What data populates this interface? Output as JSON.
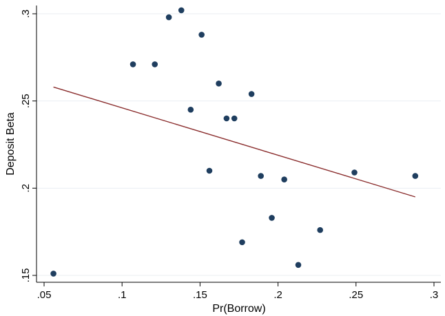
{
  "chart_data": {
    "type": "scatter",
    "title": "",
    "xlabel": "Pr(Borrow)",
    "ylabel": "Deposit Beta",
    "xlim": [
      0.05,
      0.3
    ],
    "ylim": [
      0.15,
      0.3
    ],
    "x_ticks": [
      0.05,
      0.1,
      0.15,
      0.2,
      0.25,
      0.3
    ],
    "x_tick_labels": [
      ".05",
      ".1",
      ".15",
      ".2",
      ".25",
      ".3"
    ],
    "y_ticks": [
      0.15,
      0.2,
      0.25,
      0.3
    ],
    "y_tick_labels": [
      ".15",
      ".2",
      ".25",
      ".3"
    ],
    "grid": "horizontal",
    "series": [
      {
        "name": "observations",
        "kind": "points",
        "color": "#1f3e5f",
        "points": [
          [
            0.056,
            0.151
          ],
          [
            0.107,
            0.271
          ],
          [
            0.121,
            0.271
          ],
          [
            0.13,
            0.298
          ],
          [
            0.138,
            0.302
          ],
          [
            0.151,
            0.288
          ],
          [
            0.144,
            0.245
          ],
          [
            0.156,
            0.21
          ],
          [
            0.162,
            0.26
          ],
          [
            0.167,
            0.24
          ],
          [
            0.172,
            0.24
          ],
          [
            0.177,
            0.169
          ],
          [
            0.183,
            0.254
          ],
          [
            0.189,
            0.207
          ],
          [
            0.196,
            0.183
          ],
          [
            0.204,
            0.205
          ],
          [
            0.213,
            0.156
          ],
          [
            0.227,
            0.176
          ],
          [
            0.249,
            0.209
          ],
          [
            0.288,
            0.207
          ]
        ]
      },
      {
        "name": "fitted line",
        "kind": "line",
        "color": "#8b2e2e",
        "points": [
          [
            0.056,
            0.258
          ],
          [
            0.288,
            0.195
          ]
        ]
      }
    ]
  }
}
